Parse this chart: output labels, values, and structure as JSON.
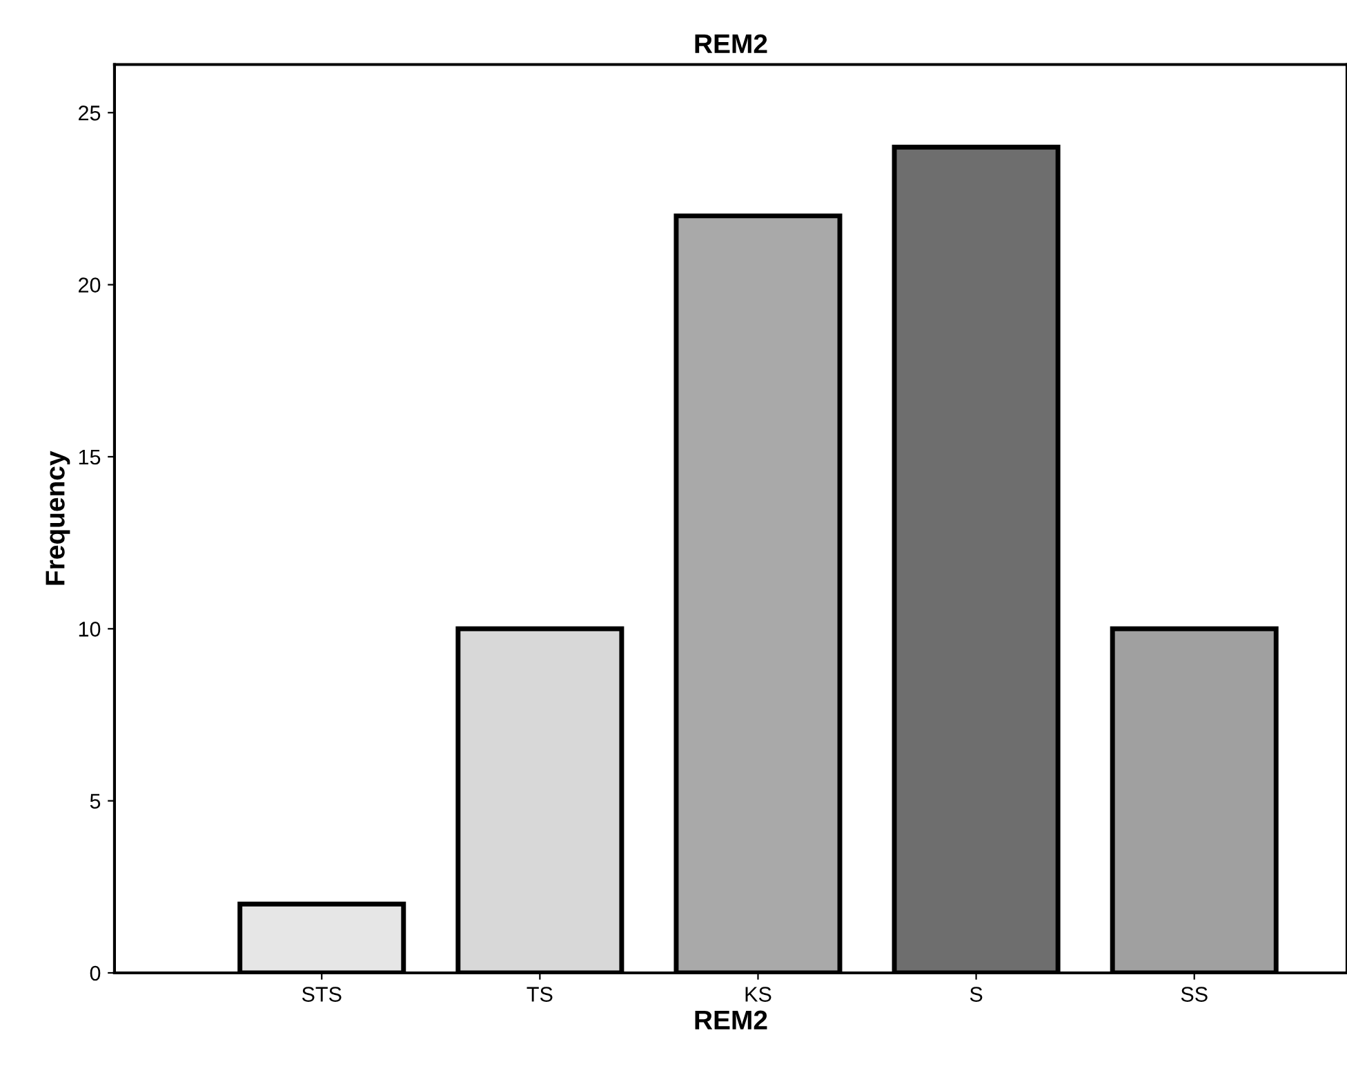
{
  "chart_data": {
    "type": "bar",
    "title": "REM2",
    "xlabel": "REM2",
    "ylabel": "Frequency",
    "categories": [
      "STS",
      "TS",
      "KS",
      "S",
      "SS"
    ],
    "values": [
      2,
      10,
      22,
      24,
      10
    ],
    "colors": [
      "#e6e6e6",
      "#d8d8d8",
      "#a9a9a9",
      "#6e6e6e",
      "#a0a0a0"
    ],
    "ylim": [
      0,
      26.4
    ],
    "yticks": [
      0,
      5,
      10,
      15,
      20,
      25
    ],
    "grid": false,
    "legend": false
  }
}
